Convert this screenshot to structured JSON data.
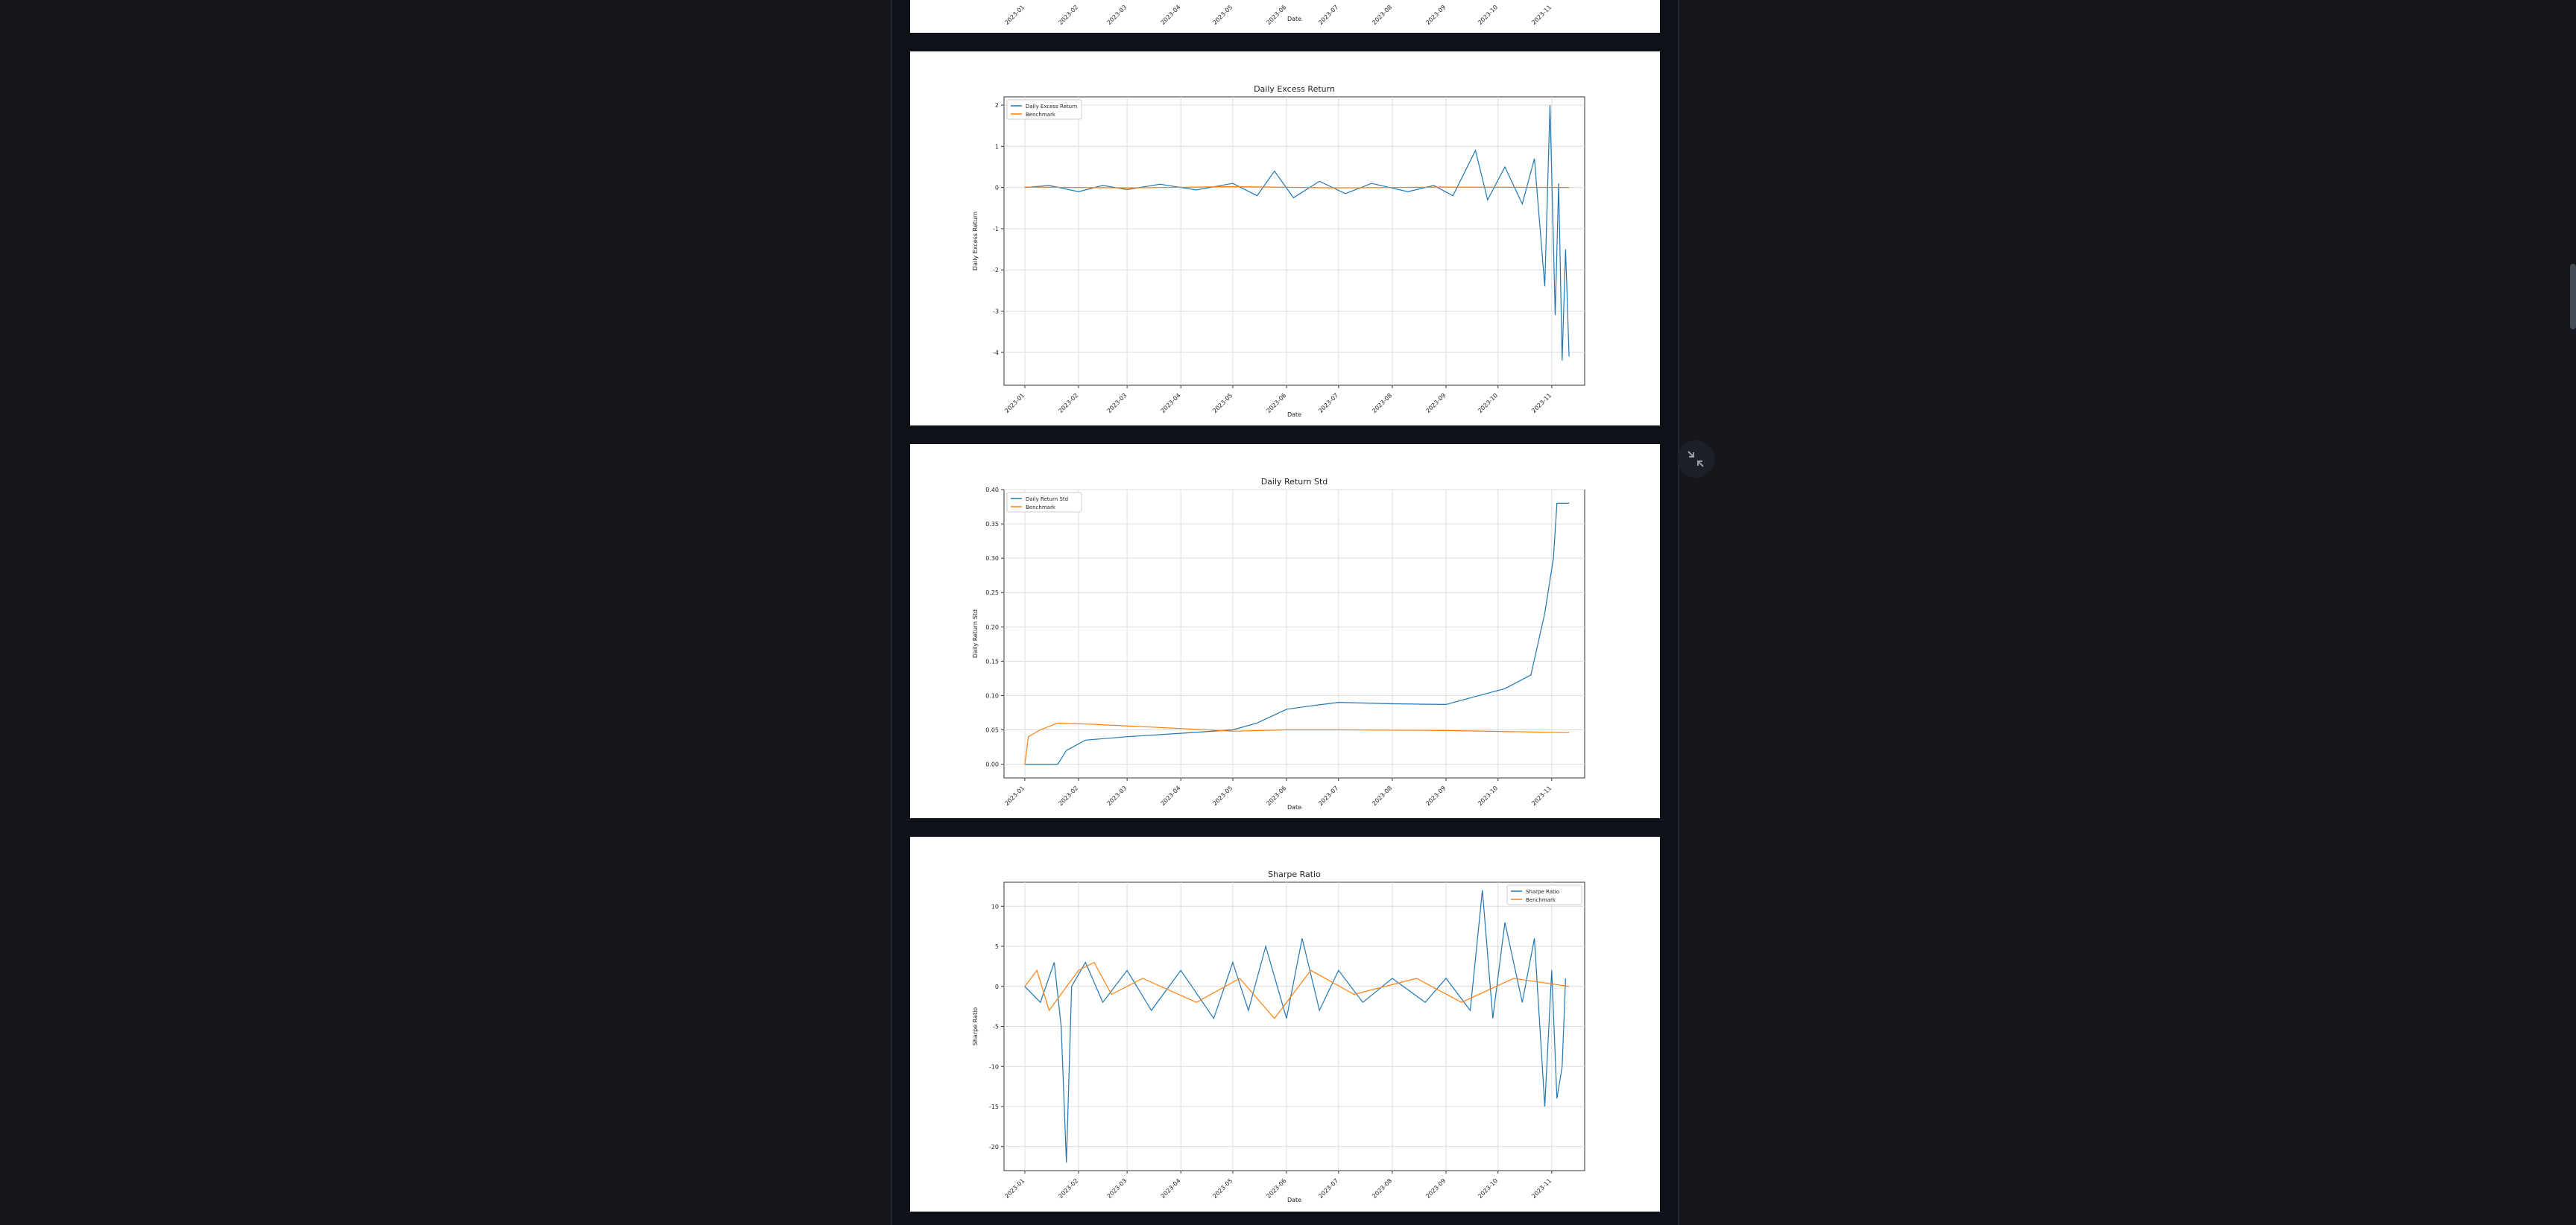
{
  "ui": {
    "accent_blue": "#1f77b4",
    "accent_orange": "#ff7f0e",
    "expand_icon": "fullscreen-exit-icon"
  },
  "chart_data": [
    {
      "type": "line",
      "title": "",
      "xlabel": "Date",
      "ylabel": "",
      "x_ticks": [
        "2023-01",
        "2023-02",
        "2023-03",
        "2023-04",
        "2023-05",
        "2023-06",
        "2023-07",
        "2023-08",
        "2023-09",
        "2023-10",
        "2023-11"
      ],
      "series": [],
      "partial": true
    },
    {
      "type": "line",
      "title": "Daily Excess Return",
      "xlabel": "Date",
      "ylabel": "Daily Excess Return",
      "x_ticks": [
        "2023-01",
        "2023-02",
        "2023-03",
        "2023-04",
        "2023-05",
        "2023-06",
        "2023-07",
        "2023-08",
        "2023-09",
        "2023-10",
        "2023-11"
      ],
      "y_ticks": [
        2,
        1,
        0,
        -1,
        -2,
        -3,
        -4
      ],
      "xlim": [
        "2022-12-20",
        "2023-11-20"
      ],
      "ylim": [
        -4.8,
        2.2
      ],
      "grid": true,
      "legend": "top-left",
      "series": [
        {
          "name": "Daily Excess Return",
          "color": "#1f77b4",
          "points": [
            [
              "2023-01-01",
              0
            ],
            [
              "2023-01-15",
              0.05
            ],
            [
              "2023-02-01",
              -0.1
            ],
            [
              "2023-02-15",
              0.05
            ],
            [
              "2023-03-01",
              -0.05
            ],
            [
              "2023-03-20",
              0.08
            ],
            [
              "2023-04-10",
              -0.06
            ],
            [
              "2023-05-01",
              0.1
            ],
            [
              "2023-05-15",
              -0.2
            ],
            [
              "2023-05-25",
              0.4
            ],
            [
              "2023-06-05",
              -0.25
            ],
            [
              "2023-06-20",
              0.15
            ],
            [
              "2023-07-05",
              -0.15
            ],
            [
              "2023-07-20",
              0.1
            ],
            [
              "2023-08-10",
              -0.1
            ],
            [
              "2023-08-25",
              0.05
            ],
            [
              "2023-09-05",
              -0.2
            ],
            [
              "2023-09-18",
              0.9
            ],
            [
              "2023-09-25",
              -0.3
            ],
            [
              "2023-10-05",
              0.5
            ],
            [
              "2023-10-15",
              -0.4
            ],
            [
              "2023-10-22",
              0.7
            ],
            [
              "2023-10-28",
              -2.4
            ],
            [
              "2023-10-31",
              2.0
            ],
            [
              "2023-11-03",
              -3.1
            ],
            [
              "2023-11-05",
              0.1
            ],
            [
              "2023-11-07",
              -4.2
            ],
            [
              "2023-11-09",
              -1.5
            ],
            [
              "2023-11-11",
              -4.1
            ]
          ]
        },
        {
          "name": "Benchmark",
          "color": "#ff7f0e",
          "points": [
            [
              "2023-01-01",
              0.01
            ],
            [
              "2023-03-01",
              -0.01
            ],
            [
              "2023-05-01",
              0.02
            ],
            [
              "2023-07-01",
              -0.01
            ],
            [
              "2023-09-01",
              0.01
            ],
            [
              "2023-11-11",
              0.0
            ]
          ]
        }
      ]
    },
    {
      "type": "line",
      "title": "Daily Return Std",
      "xlabel": "Date",
      "ylabel": "Daily Return Std",
      "x_ticks": [
        "2023-01",
        "2023-02",
        "2023-03",
        "2023-04",
        "2023-05",
        "2023-06",
        "2023-07",
        "2023-08",
        "2023-09",
        "2023-10",
        "2023-11"
      ],
      "y_ticks": [
        "0.40",
        "0.35",
        "0.30",
        "0.25",
        "0.20",
        "0.15",
        "0.10",
        "0.05",
        "0.00"
      ],
      "xlim": [
        "2022-12-20",
        "2023-11-20"
      ],
      "ylim": [
        -0.02,
        0.4
      ],
      "grid": true,
      "legend": "top-left",
      "series": [
        {
          "name": "Daily Return Std",
          "color": "#1f77b4",
          "points": [
            [
              "2023-01-01",
              0.0
            ],
            [
              "2023-01-20",
              0.0
            ],
            [
              "2023-01-25",
              0.02
            ],
            [
              "2023-02-05",
              0.035
            ],
            [
              "2023-03-01",
              0.04
            ],
            [
              "2023-04-01",
              0.045
            ],
            [
              "2023-05-01",
              0.05
            ],
            [
              "2023-05-15",
              0.06
            ],
            [
              "2023-06-01",
              0.08
            ],
            [
              "2023-06-15",
              0.085
            ],
            [
              "2023-07-01",
              0.09
            ],
            [
              "2023-08-01",
              0.088
            ],
            [
              "2023-09-01",
              0.087
            ],
            [
              "2023-09-20",
              0.1
            ],
            [
              "2023-10-05",
              0.11
            ],
            [
              "2023-10-20",
              0.13
            ],
            [
              "2023-10-28",
              0.22
            ],
            [
              "2023-11-02",
              0.3
            ],
            [
              "2023-11-04",
              0.38
            ],
            [
              "2023-11-11",
              0.38
            ]
          ]
        },
        {
          "name": "Benchmark",
          "color": "#ff7f0e",
          "points": [
            [
              "2023-01-01",
              0.0
            ],
            [
              "2023-01-03",
              0.04
            ],
            [
              "2023-01-10",
              0.05
            ],
            [
              "2023-01-20",
              0.06
            ],
            [
              "2023-02-10",
              0.058
            ],
            [
              "2023-04-01",
              0.052
            ],
            [
              "2023-05-01",
              0.048
            ],
            [
              "2023-06-01",
              0.05
            ],
            [
              "2023-07-01",
              0.05
            ],
            [
              "2023-09-01",
              0.049
            ],
            [
              "2023-11-11",
              0.046
            ]
          ]
        }
      ]
    },
    {
      "type": "line",
      "title": "Sharpe Ratio",
      "xlabel": "Date",
      "ylabel": "Sharpe Ratio",
      "x_ticks": [
        "2023-01",
        "2023-02",
        "2023-03",
        "2023-04",
        "2023-05",
        "2023-06",
        "2023-07",
        "2023-08",
        "2023-09",
        "2023-10",
        "2023-11"
      ],
      "y_ticks": [
        10,
        5,
        0,
        -5,
        -10,
        -15,
        -20
      ],
      "xlim": [
        "2022-12-20",
        "2023-11-20"
      ],
      "ylim": [
        -23,
        13
      ],
      "grid": true,
      "legend": "top-right",
      "series": [
        {
          "name": "Sharpe Ratio",
          "color": "#1f77b4",
          "points": [
            [
              "2023-01-01",
              0
            ],
            [
              "2023-01-10",
              -2
            ],
            [
              "2023-01-18",
              3
            ],
            [
              "2023-01-22",
              -5
            ],
            [
              "2023-01-25",
              -22
            ],
            [
              "2023-01-28",
              0
            ],
            [
              "2023-02-05",
              3
            ],
            [
              "2023-02-15",
              -2
            ],
            [
              "2023-03-01",
              2
            ],
            [
              "2023-03-15",
              -3
            ],
            [
              "2023-04-01",
              2
            ],
            [
              "2023-04-20",
              -4
            ],
            [
              "2023-05-01",
              3
            ],
            [
              "2023-05-10",
              -3
            ],
            [
              "2023-05-20",
              5
            ],
            [
              "2023-06-01",
              -4
            ],
            [
              "2023-06-10",
              6
            ],
            [
              "2023-06-20",
              -3
            ],
            [
              "2023-07-01",
              2
            ],
            [
              "2023-07-15",
              -2
            ],
            [
              "2023-08-01",
              1
            ],
            [
              "2023-08-20",
              -2
            ],
            [
              "2023-09-01",
              1
            ],
            [
              "2023-09-15",
              -3
            ],
            [
              "2023-09-22",
              12
            ],
            [
              "2023-09-28",
              -4
            ],
            [
              "2023-10-05",
              8
            ],
            [
              "2023-10-15",
              -2
            ],
            [
              "2023-10-22",
              6
            ],
            [
              "2023-10-28",
              -15
            ],
            [
              "2023-11-01",
              2
            ],
            [
              "2023-11-04",
              -14
            ],
            [
              "2023-11-07",
              -10
            ],
            [
              "2023-11-09",
              1
            ]
          ]
        },
        {
          "name": "Benchmark",
          "color": "#ff7f0e",
          "points": [
            [
              "2023-01-01",
              0
            ],
            [
              "2023-01-08",
              2
            ],
            [
              "2023-01-15",
              -3
            ],
            [
              "2023-02-01",
              2
            ],
            [
              "2023-02-10",
              3
            ],
            [
              "2023-02-20",
              -1
            ],
            [
              "2023-03-10",
              1
            ],
            [
              "2023-04-10",
              -2
            ],
            [
              "2023-05-05",
              1
            ],
            [
              "2023-05-25",
              -4
            ],
            [
              "2023-06-15",
              2
            ],
            [
              "2023-07-10",
              -1
            ],
            [
              "2023-08-15",
              1
            ],
            [
              "2023-09-10",
              -2
            ],
            [
              "2023-10-10",
              1
            ],
            [
              "2023-11-11",
              0
            ]
          ]
        }
      ]
    }
  ]
}
